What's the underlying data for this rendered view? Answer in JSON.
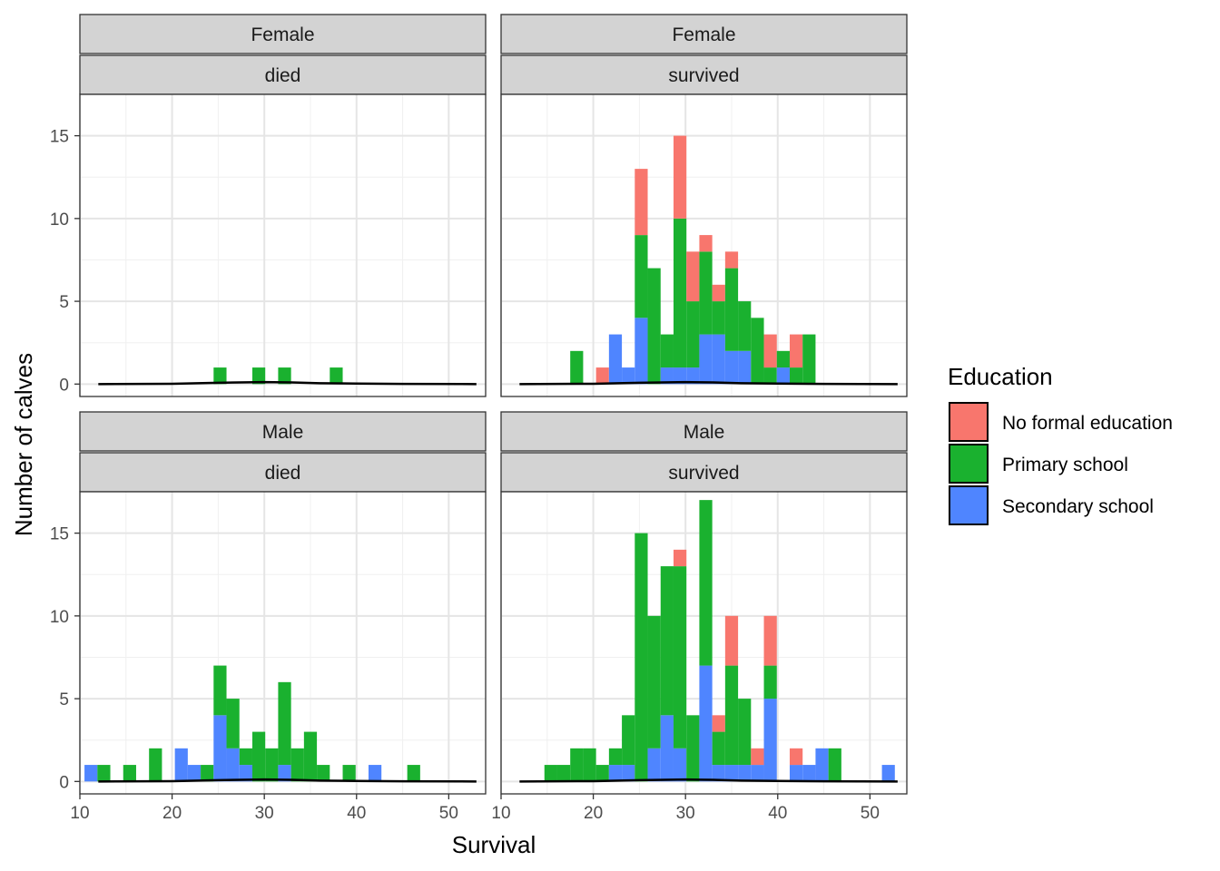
{
  "chart_data": {
    "type": "bar",
    "subtype": "faceted stacked histogram with density line",
    "xlabel": "Survival",
    "ylabel": "Number of calves",
    "xlim": [
      10,
      54
    ],
    "ylim": [
      0,
      17.5
    ],
    "x_ticks": [
      10,
      20,
      30,
      40,
      50
    ],
    "y_ticks": [
      0,
      5,
      10,
      15
    ],
    "bin_width": 1.4,
    "grid": true,
    "legend": {
      "title": "Education",
      "position": "right",
      "entries": [
        {
          "name": "No formal education",
          "color": "#F8766D"
        },
        {
          "name": "Primary school",
          "color": "#1AB12F"
        },
        {
          "name": "Secondary school",
          "color": "#4F85FF"
        }
      ]
    },
    "panels": [
      {
        "strip": [
          "Female",
          "died"
        ],
        "bins": [
          {
            "x": 25.2,
            "none": 0,
            "primary": 1,
            "secondary": 0
          },
          {
            "x": 29.4,
            "none": 0,
            "primary": 1,
            "secondary": 0
          },
          {
            "x": 32.2,
            "none": 0,
            "primary": 1,
            "secondary": 0
          },
          {
            "x": 37.8,
            "none": 0,
            "primary": 1,
            "secondary": 0
          }
        ],
        "density": [
          [
            12,
            0
          ],
          [
            20,
            0.02
          ],
          [
            25,
            0.08
          ],
          [
            30,
            0.12
          ],
          [
            33,
            0.1
          ],
          [
            36,
            0.05
          ],
          [
            40,
            0.03
          ],
          [
            45,
            0.01
          ],
          [
            53,
            0
          ]
        ]
      },
      {
        "strip": [
          "Female",
          "survived"
        ],
        "bins": [
          {
            "x": 18.2,
            "none": 0,
            "primary": 2,
            "secondary": 0
          },
          {
            "x": 21.0,
            "none": 1,
            "primary": 0,
            "secondary": 0
          },
          {
            "x": 22.4,
            "none": 0,
            "primary": 0,
            "secondary": 3
          },
          {
            "x": 23.8,
            "none": 0,
            "primary": 0,
            "secondary": 1
          },
          {
            "x": 25.2,
            "none": 4,
            "primary": 5,
            "secondary": 4
          },
          {
            "x": 26.6,
            "none": 0,
            "primary": 7,
            "secondary": 0
          },
          {
            "x": 28.0,
            "none": 0,
            "primary": 2,
            "secondary": 1
          },
          {
            "x": 29.4,
            "none": 5,
            "primary": 9,
            "secondary": 1
          },
          {
            "x": 30.8,
            "none": 3,
            "primary": 4,
            "secondary": 1
          },
          {
            "x": 32.2,
            "none": 1,
            "primary": 5,
            "secondary": 3
          },
          {
            "x": 33.6,
            "none": 1,
            "primary": 2,
            "secondary": 3
          },
          {
            "x": 35.0,
            "none": 1,
            "primary": 5,
            "secondary": 2
          },
          {
            "x": 36.4,
            "none": 0,
            "primary": 3,
            "secondary": 2
          },
          {
            "x": 37.8,
            "none": 0,
            "primary": 4,
            "secondary": 0
          },
          {
            "x": 39.2,
            "none": 2,
            "primary": 1,
            "secondary": 0
          },
          {
            "x": 40.6,
            "none": 0,
            "primary": 1,
            "secondary": 1
          },
          {
            "x": 42.0,
            "none": 2,
            "primary": 1,
            "secondary": 0
          },
          {
            "x": 43.4,
            "none": 0,
            "primary": 3,
            "secondary": 0
          }
        ],
        "density": [
          [
            12,
            0
          ],
          [
            20,
            0.02
          ],
          [
            25,
            0.08
          ],
          [
            30,
            0.12
          ],
          [
            33,
            0.1
          ],
          [
            36,
            0.05
          ],
          [
            40,
            0.03
          ],
          [
            45,
            0.01
          ],
          [
            53,
            0
          ]
        ]
      },
      {
        "strip": [
          "Male",
          "died"
        ],
        "bins": [
          {
            "x": 11.2,
            "none": 0,
            "primary": 0,
            "secondary": 1
          },
          {
            "x": 12.6,
            "none": 0,
            "primary": 1,
            "secondary": 0
          },
          {
            "x": 15.4,
            "none": 0,
            "primary": 1,
            "secondary": 0
          },
          {
            "x": 18.2,
            "none": 0,
            "primary": 2,
            "secondary": 0
          },
          {
            "x": 21.0,
            "none": 0,
            "primary": 0,
            "secondary": 2
          },
          {
            "x": 22.4,
            "none": 0,
            "primary": 0,
            "secondary": 1
          },
          {
            "x": 23.8,
            "none": 0,
            "primary": 1,
            "secondary": 0
          },
          {
            "x": 25.2,
            "none": 0,
            "primary": 3,
            "secondary": 4
          },
          {
            "x": 26.6,
            "none": 0,
            "primary": 3,
            "secondary": 2
          },
          {
            "x": 28.0,
            "none": 0,
            "primary": 1,
            "secondary": 1
          },
          {
            "x": 29.4,
            "none": 0,
            "primary": 3,
            "secondary": 0
          },
          {
            "x": 30.8,
            "none": 0,
            "primary": 2,
            "secondary": 0
          },
          {
            "x": 32.2,
            "none": 0,
            "primary": 5,
            "secondary": 1
          },
          {
            "x": 33.6,
            "none": 0,
            "primary": 2,
            "secondary": 0
          },
          {
            "x": 35.0,
            "none": 0,
            "primary": 3,
            "secondary": 0
          },
          {
            "x": 36.4,
            "none": 0,
            "primary": 1,
            "secondary": 0
          },
          {
            "x": 39.2,
            "none": 0,
            "primary": 1,
            "secondary": 0
          },
          {
            "x": 42.0,
            "none": 0,
            "primary": 0,
            "secondary": 1
          },
          {
            "x": 46.2,
            "none": 0,
            "primary": 1,
            "secondary": 0
          }
        ],
        "density": [
          [
            12,
            0
          ],
          [
            20,
            0.02
          ],
          [
            25,
            0.08
          ],
          [
            30,
            0.12
          ],
          [
            33,
            0.1
          ],
          [
            36,
            0.05
          ],
          [
            40,
            0.03
          ],
          [
            45,
            0.01
          ],
          [
            53,
            0
          ]
        ]
      },
      {
        "strip": [
          "Male",
          "survived"
        ],
        "bins": [
          {
            "x": 15.4,
            "none": 0,
            "primary": 1,
            "secondary": 0
          },
          {
            "x": 16.8,
            "none": 0,
            "primary": 1,
            "secondary": 0
          },
          {
            "x": 18.2,
            "none": 0,
            "primary": 2,
            "secondary": 0
          },
          {
            "x": 19.6,
            "none": 0,
            "primary": 2,
            "secondary": 0
          },
          {
            "x": 21.0,
            "none": 0,
            "primary": 1,
            "secondary": 0
          },
          {
            "x": 22.4,
            "none": 0,
            "primary": 1,
            "secondary": 1
          },
          {
            "x": 23.8,
            "none": 0,
            "primary": 3,
            "secondary": 1
          },
          {
            "x": 25.2,
            "none": 0,
            "primary": 15,
            "secondary": 0
          },
          {
            "x": 26.6,
            "none": 0,
            "primary": 8,
            "secondary": 2
          },
          {
            "x": 28.0,
            "none": 0,
            "primary": 9,
            "secondary": 4
          },
          {
            "x": 29.4,
            "none": 1,
            "primary": 11,
            "secondary": 2
          },
          {
            "x": 30.8,
            "none": 0,
            "primary": 4,
            "secondary": 0
          },
          {
            "x": 32.2,
            "none": 0,
            "primary": 10,
            "secondary": 7
          },
          {
            "x": 33.6,
            "none": 1,
            "primary": 2,
            "secondary": 1
          },
          {
            "x": 35.0,
            "none": 3,
            "primary": 6,
            "secondary": 1
          },
          {
            "x": 36.4,
            "none": 0,
            "primary": 4,
            "secondary": 1
          },
          {
            "x": 37.8,
            "none": 1,
            "primary": 0,
            "secondary": 1
          },
          {
            "x": 39.2,
            "none": 3,
            "primary": 2,
            "secondary": 5
          },
          {
            "x": 42.0,
            "none": 1,
            "primary": 0,
            "secondary": 1
          },
          {
            "x": 43.4,
            "none": 0,
            "primary": 0,
            "secondary": 1
          },
          {
            "x": 44.8,
            "none": 0,
            "primary": 0,
            "secondary": 2
          },
          {
            "x": 46.2,
            "none": 0,
            "primary": 2,
            "secondary": 0
          },
          {
            "x": 52.0,
            "none": 0,
            "primary": 0,
            "secondary": 1
          }
        ],
        "density": [
          [
            12,
            0
          ],
          [
            20,
            0.02
          ],
          [
            25,
            0.08
          ],
          [
            30,
            0.12
          ],
          [
            33,
            0.1
          ],
          [
            36,
            0.05
          ],
          [
            40,
            0.03
          ],
          [
            45,
            0.01
          ],
          [
            53,
            0
          ]
        ]
      }
    ]
  }
}
